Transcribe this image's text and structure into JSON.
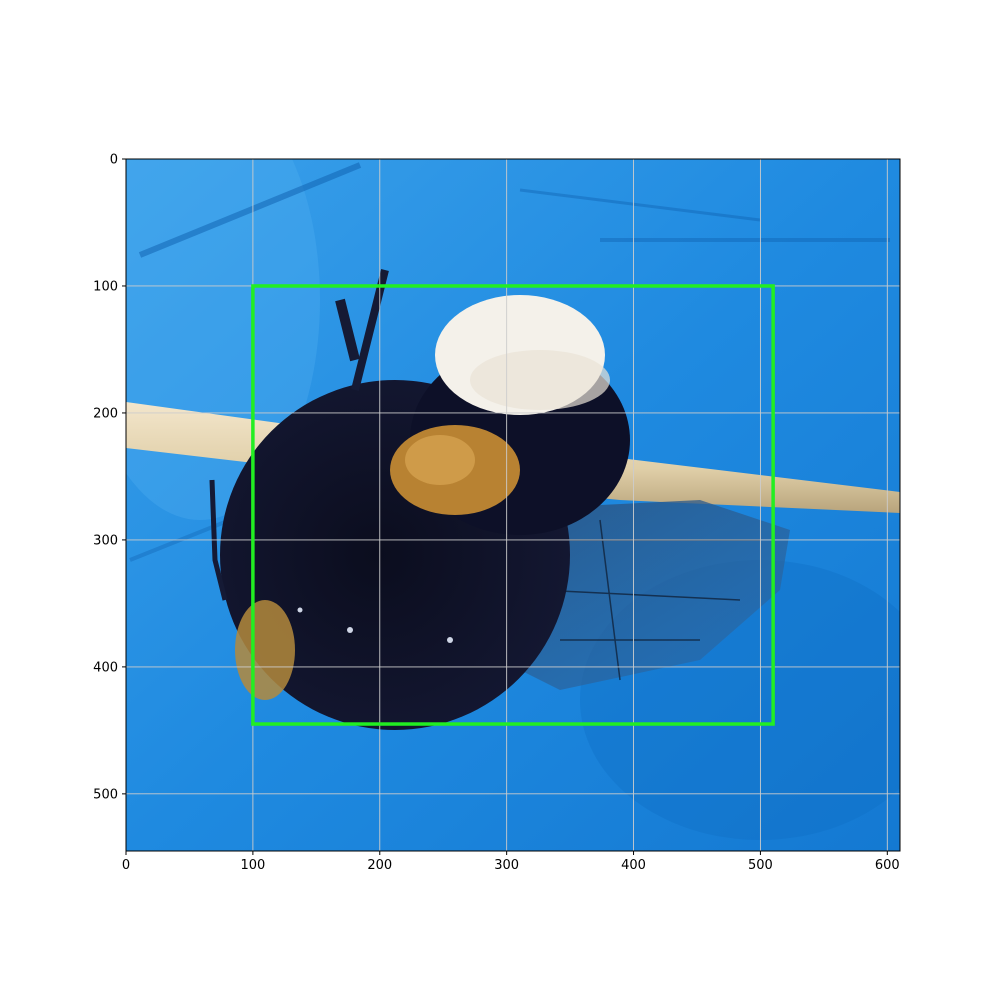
{
  "chart_data": {
    "type": "image",
    "xlim": [
      0,
      610
    ],
    "ylim": [
      545,
      0
    ],
    "x_ticks": [
      0,
      100,
      200,
      300,
      400,
      500,
      600
    ],
    "y_ticks": [
      0,
      100,
      200,
      300,
      400,
      500
    ],
    "grid": true,
    "bounding_box": {
      "x_min": 100,
      "y_min": 100,
      "x_max": 510,
      "y_max": 445
    },
    "colors": {
      "box": "#22ee22",
      "background": "#1a86dc",
      "grid": "#cccccc"
    },
    "image_subject": "bumblebee-on-stick"
  }
}
